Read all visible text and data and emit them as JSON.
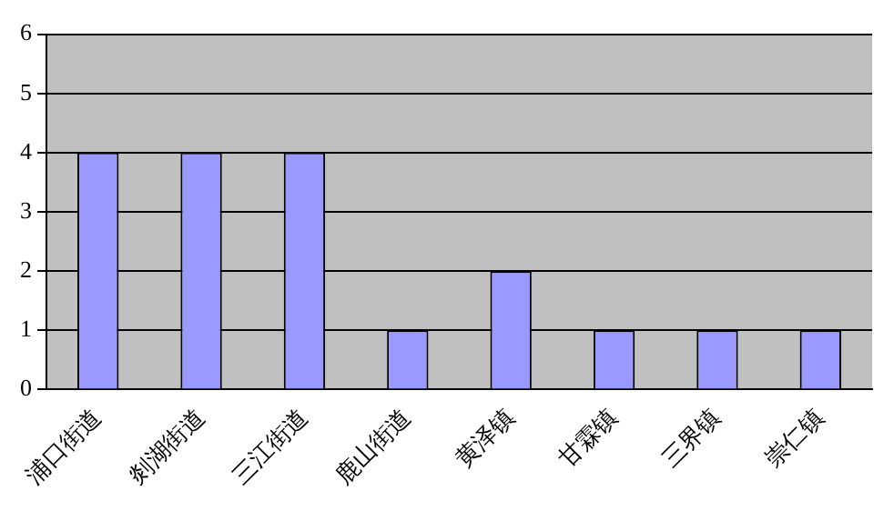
{
  "chart_data": {
    "type": "bar",
    "categories": [
      "浦口街道",
      "剡湖街道",
      "三江街道",
      "鹿山街道",
      "黄泽镇",
      "甘霖镇",
      "三界镇",
      "崇仁镇"
    ],
    "values": [
      4,
      4,
      4,
      1,
      2,
      1,
      1,
      1
    ],
    "color": "#9999ff",
    "ylim": [
      0,
      6
    ],
    "yticks": [
      0,
      1,
      2,
      3,
      4,
      5,
      6
    ],
    "grid": "y",
    "legend": false
  }
}
